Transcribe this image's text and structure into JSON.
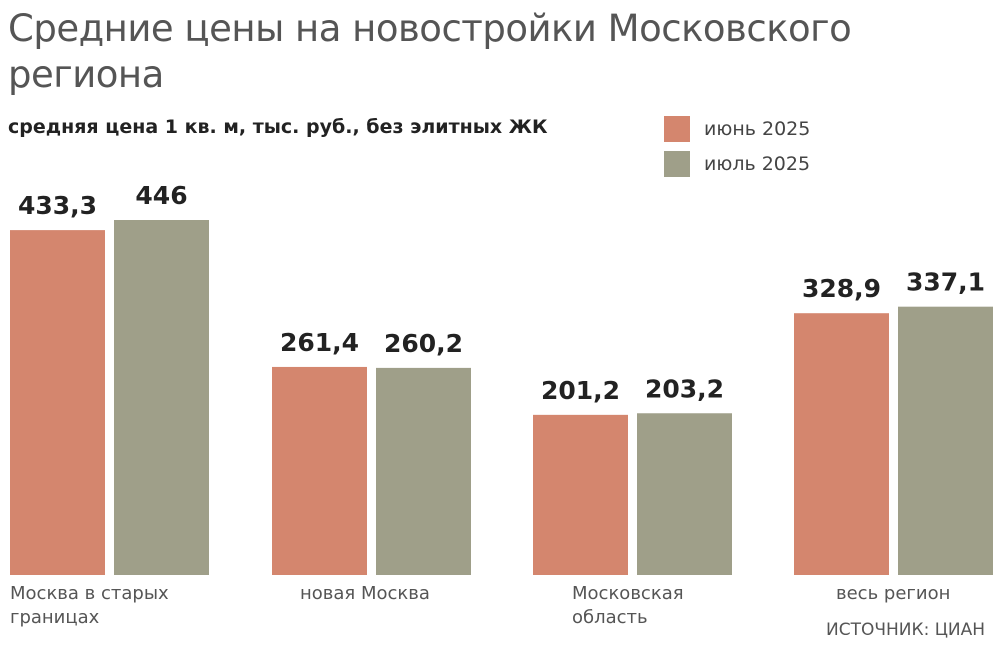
{
  "chart_data": {
    "type": "bar",
    "title": "Средние цены на новостройки Московского региона",
    "subtitle": "средняя цена 1 кв. м, тыс. руб., без элитных ЖК",
    "categories": [
      "Москва в старых границах",
      "новая Москва",
      "Московская область",
      "весь регион"
    ],
    "series": [
      {
        "name": "июнь 2025",
        "color": "#d4866e",
        "values": [
          433.3,
          261.4,
          201.2,
          328.9
        ],
        "labels": [
          "433,3",
          "261,4",
          "201,2",
          "328,9"
        ]
      },
      {
        "name": "июль 2025",
        "color": "#9f9f89",
        "values": [
          446,
          260.2,
          203.2,
          337.1
        ],
        "labels": [
          "446",
          "260,2",
          "203,2",
          "337,1"
        ]
      }
    ],
    "ylim": [
      0,
      446
    ],
    "grid": false,
    "legend": "top-right",
    "source": "ИСТОЧНИК: ЦИАН"
  }
}
